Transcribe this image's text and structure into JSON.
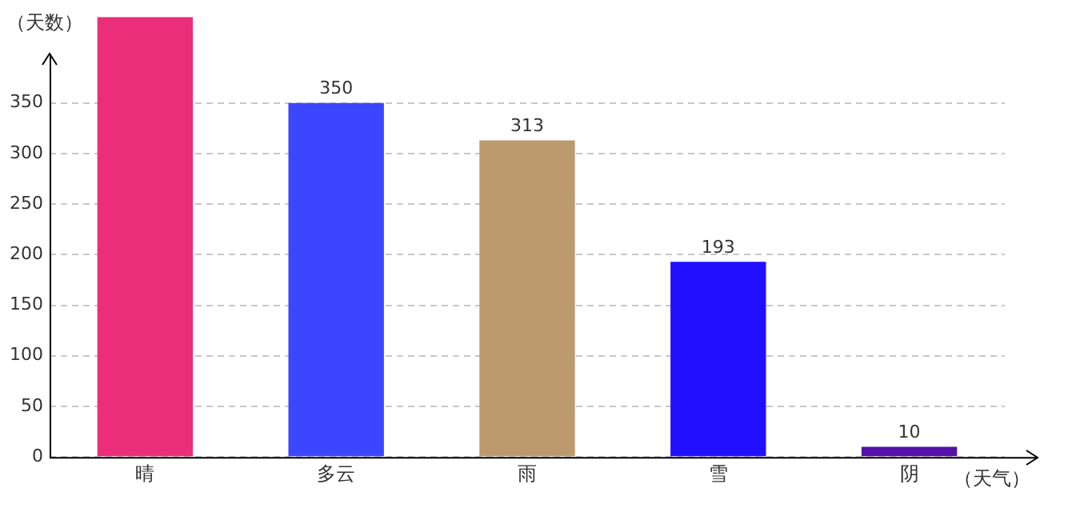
{
  "chart_data": {
    "type": "bar",
    "xlabel": "（天气）",
    "ylabel": "（天数）",
    "categories": [
      "晴",
      "多云",
      "雨",
      "雪",
      "阴"
    ],
    "values": [
      435,
      350,
      313,
      193,
      10
    ],
    "colors": [
      "#ea2e79",
      "#3c46ff",
      "#bc9a6d",
      "#2010ff",
      "#5410a8"
    ],
    "value_labels": [
      null,
      "350",
      "313",
      "193",
      "10"
    ],
    "ylim": [
      0,
      435
    ],
    "yticks": [
      0,
      50,
      100,
      150,
      200,
      250,
      300,
      350
    ],
    "grid": "y",
    "legend": false
  }
}
